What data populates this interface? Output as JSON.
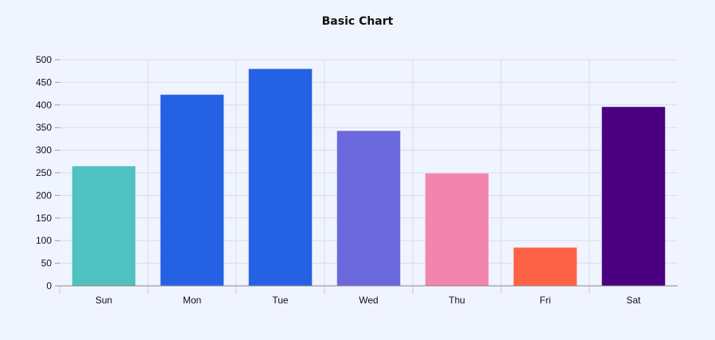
{
  "chart_data": {
    "type": "bar",
    "title": "Basic Chart",
    "xlabel": "",
    "ylabel": "",
    "categories": [
      "Sun",
      "Mon",
      "Tue",
      "Wed",
      "Thu",
      "Fri",
      "Sat"
    ],
    "values": [
      265,
      423,
      480,
      343,
      249,
      85,
      396
    ],
    "colors": [
      "#4fc1c0",
      "#2461e4",
      "#2461e4",
      "#6a68dc",
      "#f284ad",
      "#ff6347",
      "#4b0082"
    ],
    "ylim": [
      0,
      500
    ],
    "yticks": [
      0,
      50,
      100,
      150,
      200,
      250,
      300,
      350,
      400,
      450,
      500
    ],
    "grid": true,
    "legend": null
  }
}
